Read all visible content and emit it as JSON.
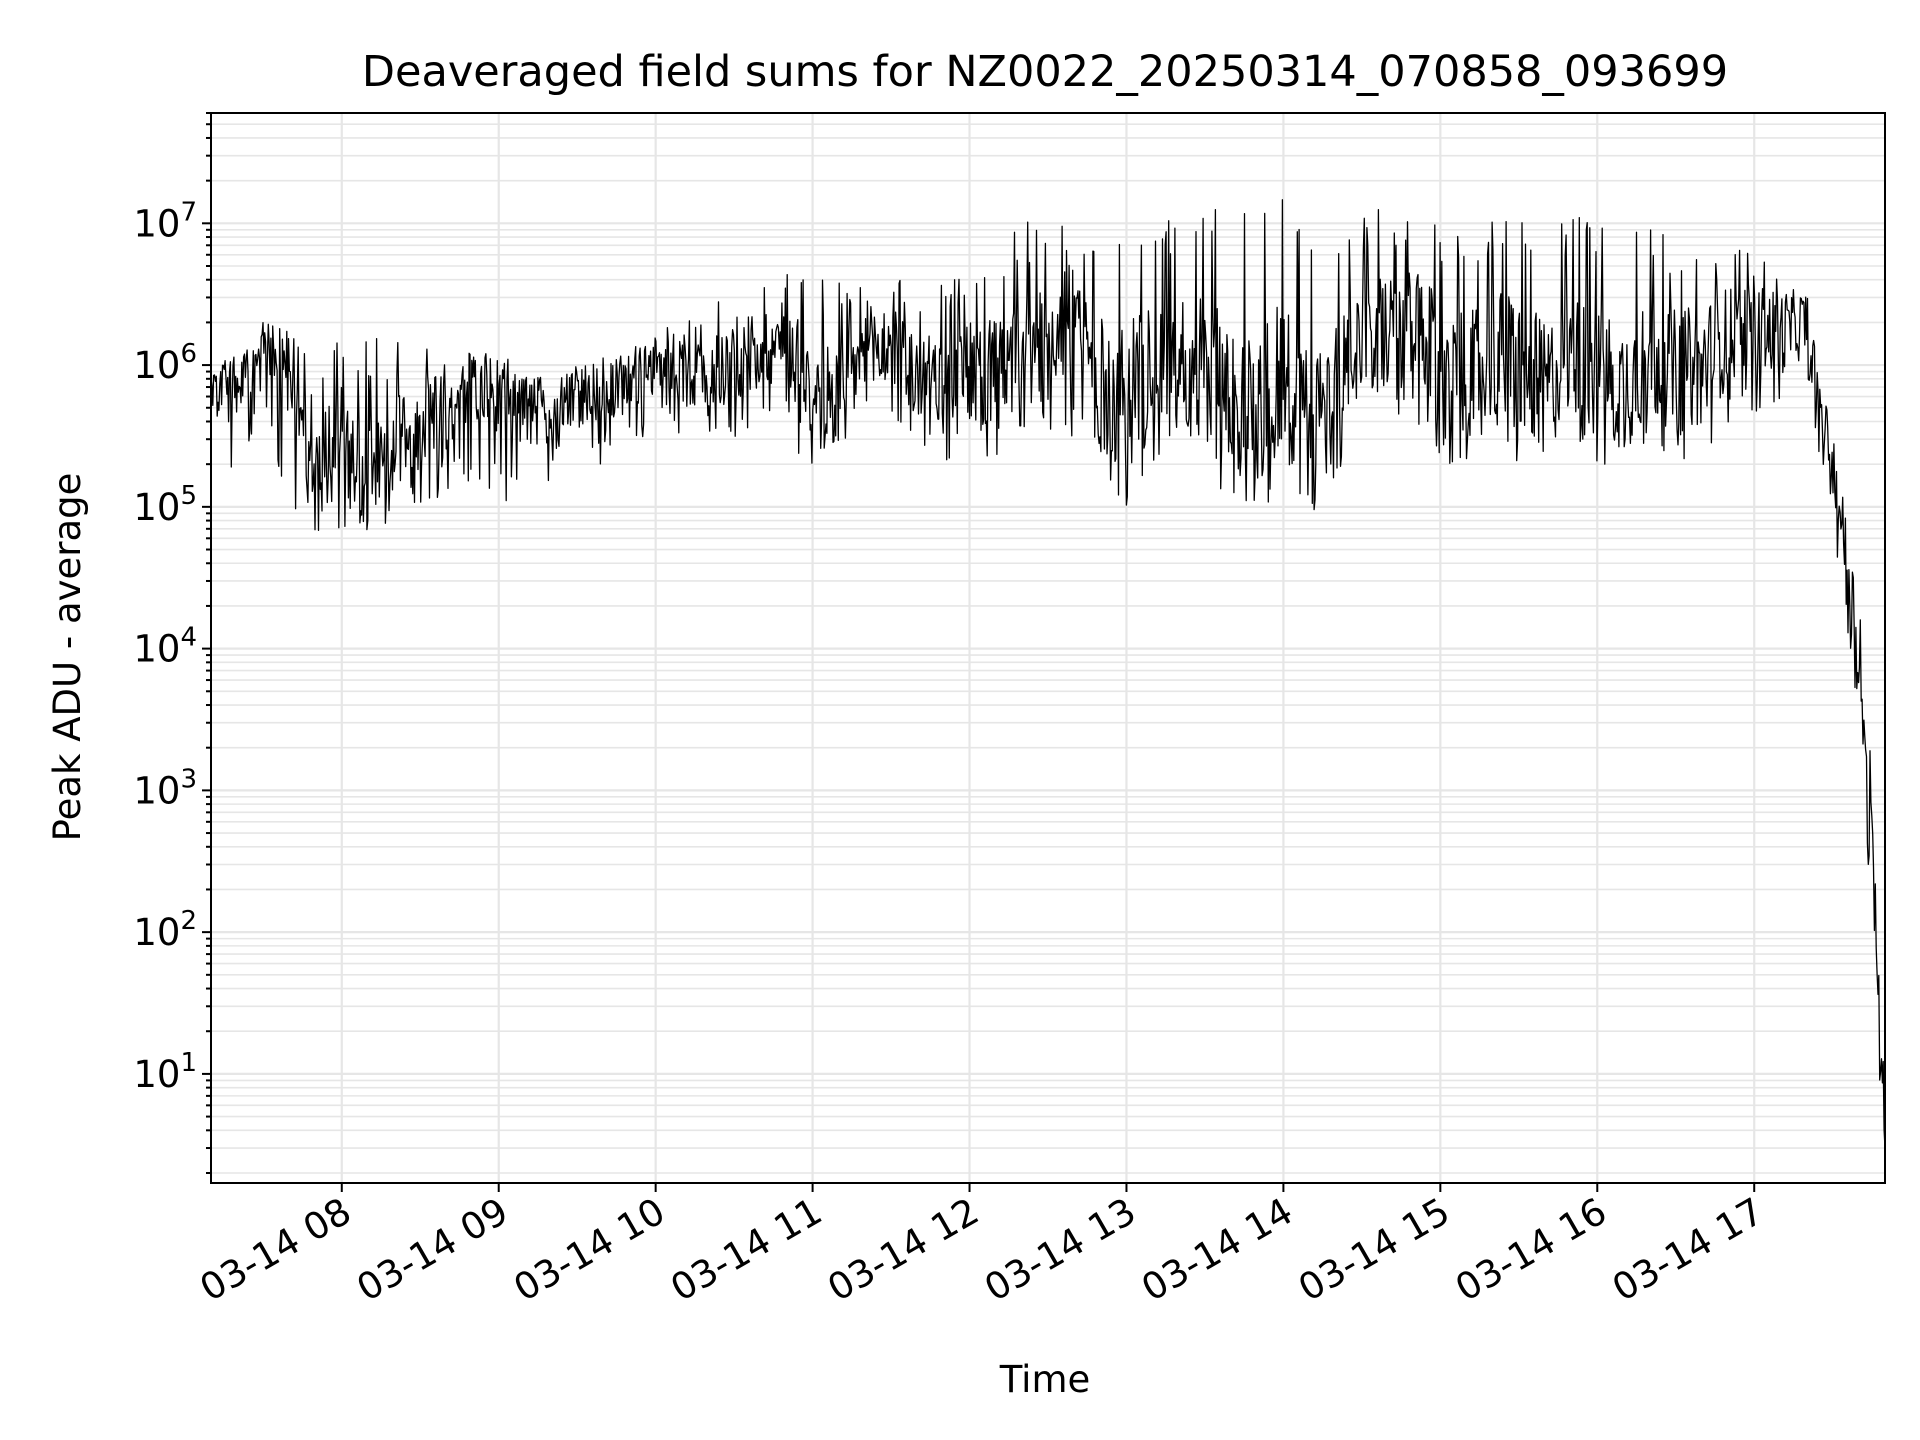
{
  "chart_data": {
    "type": "line",
    "title": "Deaveraged field sums for NZ0022_20250314_070858_093699",
    "xlabel": "Time",
    "ylabel": "Peak ADU - average",
    "yscale": "log",
    "xlim": [
      "2025-03-14T07:10",
      "2025-03-14T17:50"
    ],
    "ylim": [
      1.7,
      60000000
    ],
    "grid": true,
    "x_ticks": [
      {
        "label": "03-14 08",
        "value": "2025-03-14T08:00"
      },
      {
        "label": "03-14 09",
        "value": "2025-03-14T09:00"
      },
      {
        "label": "03-14 10",
        "value": "2025-03-14T10:00"
      },
      {
        "label": "03-14 11",
        "value": "2025-03-14T11:00"
      },
      {
        "label": "03-14 12",
        "value": "2025-03-14T12:00"
      },
      {
        "label": "03-14 13",
        "value": "2025-03-14T13:00"
      },
      {
        "label": "03-14 14",
        "value": "2025-03-14T14:00"
      },
      {
        "label": "03-14 15",
        "value": "2025-03-14T15:00"
      },
      {
        "label": "03-14 16",
        "value": "2025-03-14T16:00"
      },
      {
        "label": "03-14 17",
        "value": "2025-03-14T17:00"
      }
    ],
    "y_ticks": [
      {
        "base": "10",
        "exp": "1",
        "value": 10
      },
      {
        "base": "10",
        "exp": "2",
        "value": 100
      },
      {
        "base": "10",
        "exp": "3",
        "value": 1000
      },
      {
        "base": "10",
        "exp": "4",
        "value": 10000
      },
      {
        "base": "10",
        "exp": "5",
        "value": 100000
      },
      {
        "base": "10",
        "exp": "6",
        "value": 1000000
      },
      {
        "base": "10",
        "exp": "7",
        "value": 10000000
      }
    ],
    "series": [
      {
        "color": "#000000",
        "x": [
          "2025-03-14T07:10",
          "2025-03-14T07:20",
          "2025-03-14T07:30",
          "2025-03-14T07:40",
          "2025-03-14T07:50",
          "2025-03-14T08:00",
          "2025-03-14T08:10",
          "2025-03-14T08:20",
          "2025-03-14T08:30",
          "2025-03-14T08:40",
          "2025-03-14T08:50",
          "2025-03-14T09:00",
          "2025-03-14T09:10",
          "2025-03-14T09:20",
          "2025-03-14T09:30",
          "2025-03-14T09:40",
          "2025-03-14T09:50",
          "2025-03-14T10:00",
          "2025-03-14T10:10",
          "2025-03-14T10:20",
          "2025-03-14T10:30",
          "2025-03-14T10:40",
          "2025-03-14T10:50",
          "2025-03-14T11:00",
          "2025-03-14T11:10",
          "2025-03-14T11:20",
          "2025-03-14T11:30",
          "2025-03-14T11:40",
          "2025-03-14T11:50",
          "2025-03-14T12:00",
          "2025-03-14T12:10",
          "2025-03-14T12:20",
          "2025-03-14T12:30",
          "2025-03-14T12:40",
          "2025-03-14T12:50",
          "2025-03-14T13:00",
          "2025-03-14T13:10",
          "2025-03-14T13:20",
          "2025-03-14T13:30",
          "2025-03-14T13:40",
          "2025-03-14T13:50",
          "2025-03-14T14:00",
          "2025-03-14T14:10",
          "2025-03-14T14:20",
          "2025-03-14T14:30",
          "2025-03-14T14:40",
          "2025-03-14T14:50",
          "2025-03-14T15:00",
          "2025-03-14T15:10",
          "2025-03-14T15:20",
          "2025-03-14T15:30",
          "2025-03-14T15:40",
          "2025-03-14T15:50",
          "2025-03-14T16:00",
          "2025-03-14T16:10",
          "2025-03-14T16:20",
          "2025-03-14T16:30",
          "2025-03-14T16:40",
          "2025-03-14T16:50",
          "2025-03-14T17:00",
          "2025-03-14T17:10",
          "2025-03-14T17:20",
          "2025-03-14T17:25",
          "2025-03-14T17:30",
          "2025-03-14T17:35",
          "2025-03-14T17:40",
          "2025-03-14T17:43",
          "2025-03-14T17:46",
          "2025-03-14T17:48",
          "2025-03-14T17:50"
        ],
        "y": [
          600000,
          700000,
          1500000,
          900000,
          200000,
          300000,
          150000,
          250000,
          400000,
          500000,
          700000,
          600000,
          500000,
          450000,
          600000,
          700000,
          800000,
          1000000,
          900000,
          800000,
          1100000,
          1300000,
          1500000,
          700000,
          600000,
          1200000,
          1400000,
          800000,
          700000,
          900000,
          800000,
          1100000,
          1500000,
          2500000,
          700000,
          600000,
          900000,
          1200000,
          800000,
          700000,
          500000,
          900000,
          300000,
          700000,
          2000000,
          1500000,
          1800000,
          1000000,
          800000,
          1200000,
          1000000,
          700000,
          1100000,
          900000,
          700000,
          1200000,
          900000,
          1000000,
          1600000,
          1800000,
          1700000,
          2000000,
          600000,
          200000,
          50000,
          10000,
          1000,
          200,
          30,
          4
        ],
        "envelope_low": [
          300000,
          150000,
          500000,
          80000,
          60000,
          70000,
          60000,
          80000,
          100000,
          120000,
          150000,
          100000,
          120000,
          150000,
          180000,
          200000,
          250000,
          350000,
          300000,
          250000,
          300000,
          400000,
          350000,
          150000,
          200000,
          300000,
          400000,
          250000,
          200000,
          250000,
          200000,
          300000,
          350000,
          300000,
          150000,
          100000,
          200000,
          250000,
          150000,
          100000,
          80000,
          150000,
          60000,
          150000,
          400000,
          300000,
          350000,
          200000,
          200000,
          250000,
          200000,
          200000,
          250000,
          200000,
          150000,
          250000,
          200000,
          250000,
          350000,
          400000,
          400000,
          500000,
          200000,
          80000,
          15000,
          3000,
          300,
          60,
          8,
          3
        ],
        "envelope_high": [
          900000,
          1500000,
          2000000,
          1700000,
          1600000,
          1600000,
          1600000,
          1500000,
          1500000,
          1400000,
          1300000,
          1200000,
          1100000,
          1000000,
          1200000,
          1300000,
          1500000,
          1800000,
          2000000,
          2500000,
          3500000,
          4000000,
          4500000,
          4000000,
          5000000,
          5000000,
          4500000,
          3500000,
          4000000,
          5000000,
          7000000,
          10000000,
          12000000,
          11000000,
          9000000,
          8000000,
          10000000,
          12000000,
          15000000,
          12000000,
          13000000,
          16000000,
          10000000,
          8000000,
          12000000,
          13000000,
          12000000,
          10000000,
          8000000,
          12000000,
          14000000,
          9000000,
          11000000,
          12000000,
          9000000,
          10000000,
          8000000,
          9000000,
          7000000,
          6000000,
          5000000,
          3500000,
          1000000,
          400000,
          150000,
          40000,
          5000,
          800,
          120,
          10
        ]
      }
    ]
  }
}
